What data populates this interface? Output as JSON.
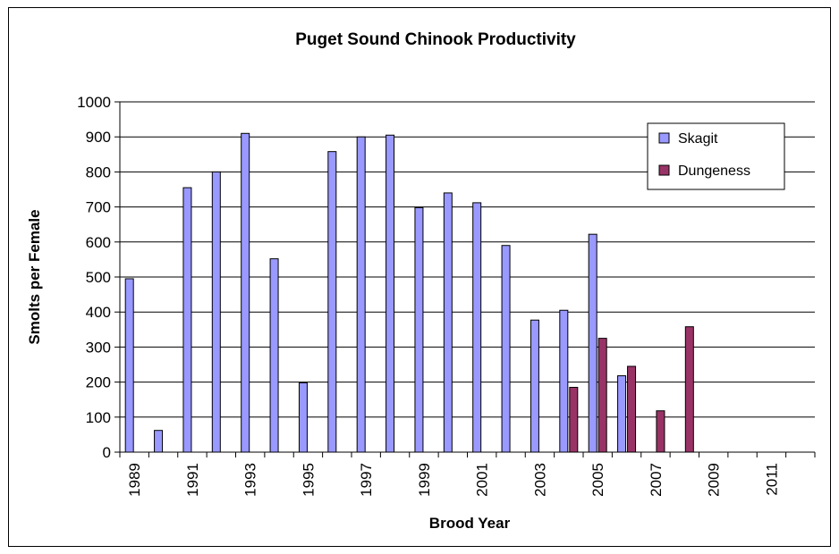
{
  "chart_data": {
    "type": "bar",
    "title": "Puget Sound Chinook Productivity",
    "xlabel": "Brood Year",
    "ylabel": "Smolts per Female",
    "ylim": [
      0,
      1000
    ],
    "yticks": [
      0,
      100,
      200,
      300,
      400,
      500,
      600,
      700,
      800,
      900,
      1000
    ],
    "categories": [
      1989,
      1990,
      1991,
      1992,
      1993,
      1994,
      1995,
      1996,
      1997,
      1998,
      1999,
      2000,
      2001,
      2002,
      2003,
      2004,
      2005,
      2006,
      2007,
      2008,
      2009,
      2010,
      2011,
      2012
    ],
    "tick_labels": [
      "1989",
      "",
      "1991",
      "",
      "1993",
      "",
      "1995",
      "",
      "1997",
      "",
      "1999",
      "",
      "2001",
      "",
      "2003",
      "",
      "2005",
      "",
      "2007",
      "",
      "2009",
      "",
      "2011",
      ""
    ],
    "series": [
      {
        "name": "Skagit",
        "color": "#9999ff",
        "values": [
          495,
          62,
          755,
          800,
          910,
          552,
          198,
          858,
          900,
          905,
          698,
          740,
          712,
          590,
          377,
          405,
          622,
          218,
          null,
          null,
          null,
          null,
          null,
          null
        ]
      },
      {
        "name": "Dungeness",
        "color": "#993366",
        "values": [
          null,
          null,
          null,
          null,
          null,
          null,
          null,
          null,
          null,
          null,
          null,
          null,
          null,
          null,
          null,
          185,
          325,
          245,
          118,
          358,
          null,
          null,
          null,
          null
        ]
      }
    ],
    "grid": true,
    "legend_position": "top-right"
  }
}
